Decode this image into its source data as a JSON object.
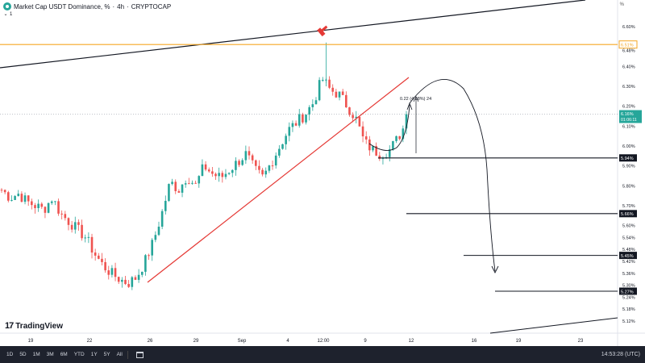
{
  "header": {
    "title": "Market Cap USDT Dominance, %",
    "timeframe": "4h",
    "source": "CRYPTOCAP",
    "sep": "·",
    "sub_badge": "1",
    "percent_label": "%"
  },
  "branding": {
    "logo_text": "TradingView",
    "logo_mark": "17"
  },
  "bottom_bar": {
    "timeframes": [
      "1D",
      "5D",
      "1M",
      "3M",
      "6M",
      "YTD",
      "1Y",
      "5Y",
      "All"
    ],
    "clock": "14:53:28 (UTC)"
  },
  "colors": {
    "up": "#26a69a",
    "down": "#ef5350",
    "accent_orange": "#f5a623",
    "support_line": "#e53935",
    "trend_line": "#131722",
    "price_label_bg": "#26a69a"
  },
  "chart_data": {
    "type": "candlestick",
    "y_axis": {
      "range": [
        5.06,
        6.66
      ],
      "ticks": [
        "6.60%",
        "6.48%",
        "6.40%",
        "6.30%",
        "6.20%",
        "6.10%",
        "6.00%",
        "5.90%",
        "5.80%",
        "5.70%",
        "5.60%",
        "5.54%",
        "5.48%",
        "5.42%",
        "5.36%",
        "5.30%",
        "5.24%",
        "5.18%",
        "5.12%"
      ],
      "tick_values": [
        6.6,
        6.48,
        6.4,
        6.3,
        6.2,
        6.1,
        6.0,
        5.9,
        5.8,
        5.7,
        5.6,
        5.54,
        5.48,
        5.42,
        5.36,
        5.3,
        5.24,
        5.18,
        5.12
      ]
    },
    "x_axis": {
      "labels": [
        "19",
        "22",
        "26",
        "29",
        "Sep",
        "4",
        "12:00",
        "9",
        "12",
        "16",
        "19",
        "23"
      ]
    },
    "candles": {
      "count": 122,
      "start": 5.78,
      "key_closes": [
        5.78,
        5.74,
        5.76,
        5.72,
        5.7,
        5.68,
        5.74,
        5.66,
        5.62,
        5.58,
        5.54,
        5.46,
        5.4,
        5.36,
        5.33,
        5.31,
        5.34,
        5.42,
        5.52,
        5.66,
        5.82,
        5.78,
        5.85,
        5.8,
        5.9,
        5.86,
        5.84,
        5.88,
        5.92,
        5.96,
        5.88,
        5.84,
        5.92,
        6.0,
        6.08,
        6.12,
        6.16,
        6.22,
        6.34,
        6.28,
        6.26,
        6.2,
        6.14,
        6.02,
        5.98,
        5.96,
        5.98,
        6.04,
        6.12
      ],
      "high": 6.52,
      "low": 5.3,
      "last": 6.16
    },
    "price_levels": [
      {
        "label": "6.51%",
        "value": 6.51,
        "style": "orange"
      },
      {
        "label": "5.94%",
        "value": 5.94,
        "style": "black"
      },
      {
        "label": "5.66%",
        "value": 5.66,
        "style": "black"
      },
      {
        "label": "5.45%",
        "value": 5.45,
        "style": "black"
      },
      {
        "label": "5.27%",
        "value": 5.27,
        "style": "black"
      }
    ],
    "current_price": {
      "label": "6.16%",
      "countdown": "01:06:11",
      "value": 6.16
    },
    "measure_annotation": "0.22 (4.08%) 24"
  }
}
